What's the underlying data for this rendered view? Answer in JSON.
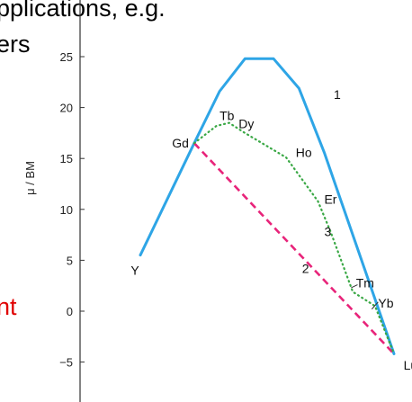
{
  "slide": {
    "line1": "pplications, e.g.",
    "line2": "ers",
    "line3": "nt"
  },
  "chart_data": {
    "type": "line",
    "ylabel": "μ / BM",
    "ylim": [
      -6,
      26
    ],
    "yticks": [
      -5,
      0,
      5,
      10,
      15,
      20,
      25
    ],
    "x": [
      "Y",
      "Gd",
      "Tb",
      "Dy",
      "Ho",
      "Er",
      "Tm",
      "Yb",
      "Lu"
    ],
    "series": [
      {
        "name": "1",
        "style": "solid",
        "color": "#2ea5e6",
        "points": [
          [
            0,
            5.5
          ],
          [
            1.7,
            16.5
          ],
          [
            2.5,
            21.6
          ],
          [
            3.3,
            24.8
          ],
          [
            4.2,
            24.8
          ],
          [
            5.0,
            21.9
          ],
          [
            5.8,
            15.6
          ],
          [
            8.0,
            -4.2
          ]
        ]
      },
      {
        "name": "2",
        "style": "dashed",
        "color": "#e8247a",
        "points": [
          [
            1.7,
            16.5
          ],
          [
            8.0,
            -4.2
          ]
        ]
      },
      {
        "name": "3",
        "style": "dotted",
        "color": "#3aa845",
        "points": [
          [
            1.7,
            16.5
          ],
          [
            2.4,
            18.2
          ],
          [
            2.8,
            18.5
          ],
          [
            3.3,
            17.5
          ],
          [
            4.6,
            15.1
          ],
          [
            5.6,
            10.8
          ],
          [
            6.0,
            7.8
          ],
          [
            6.7,
            1.9
          ],
          [
            7.4,
            0.5
          ],
          [
            8.0,
            -4.2
          ]
        ]
      }
    ],
    "point_labels": [
      {
        "text": "Y",
        "x": -0.3,
        "y": 4.0
      },
      {
        "text": "Gd",
        "x": 1.0,
        "y": 16.5
      },
      {
        "text": "Tb",
        "x": 2.5,
        "y": 19.2
      },
      {
        "text": "Dy",
        "x": 3.1,
        "y": 18.4
      },
      {
        "text": "Ho",
        "x": 4.9,
        "y": 15.6
      },
      {
        "text": "Er",
        "x": 5.8,
        "y": 11.0
      },
      {
        "text": "Tm",
        "x": 6.8,
        "y": 2.8
      },
      {
        "text": "Yb",
        "x": 7.5,
        "y": 0.8
      },
      {
        "text": "Lu",
        "x": 8.3,
        "y": -5.3
      }
    ],
    "curve_labels": [
      {
        "text": "1",
        "x": 6.1,
        "y": 21.3
      },
      {
        "text": "2",
        "x": 5.1,
        "y": 4.2
      },
      {
        "text": "3",
        "x": 5.8,
        "y": 7.8
      }
    ]
  }
}
